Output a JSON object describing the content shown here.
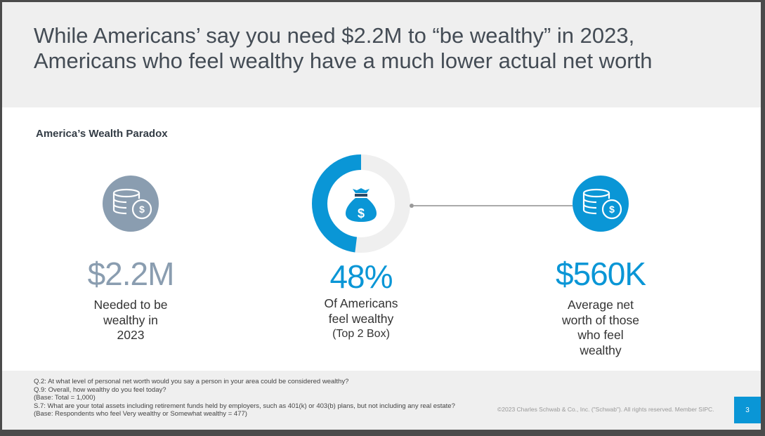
{
  "title_lines": [
    "While Americans’ say you need $2.2M to “be wealthy” in 2023,",
    "Americans who feel wealthy have a much lower actual net worth"
  ],
  "subtitle": "America’s Wealth Paradox",
  "stats": [
    {
      "value": "$2.2M",
      "description_lines": [
        "Needed to be",
        "wealthy in",
        "2023"
      ],
      "icon": "coins-dollar-icon",
      "color": "#8a9db0"
    },
    {
      "value": "48%",
      "description_lines": [
        "Of Americans",
        "feel wealthy",
        "(Top 2 Box)"
      ],
      "icon": "money-bag-icon",
      "percent": 48,
      "color": "#0a96d6"
    },
    {
      "value": "$560K",
      "description_lines": [
        "Average net",
        "worth of those",
        "who feel",
        "wealthy"
      ],
      "icon": "coins-dollar-icon",
      "color": "#0a96d6"
    }
  ],
  "footer": {
    "notes": [
      "Q.2:  At what level of personal net worth would you say a person in your area could be considered wealthy?",
      "Q.9:  Overall, how wealthy do you feel today?",
      "(Base: Total = 1,000)",
      "S.7: What are your total assets including retirement funds held by employers, such as 401(k) or 403(b) plans, but not including any real estate?",
      "(Base: Respondents who feel Very wealthy or Somewhat wealthy = 477)"
    ],
    "copyright": "©2023 Charles Schwab & Co., Inc. (\"Schwab\"). All rights reserved. Member SIPC.",
    "page_number": "3"
  }
}
